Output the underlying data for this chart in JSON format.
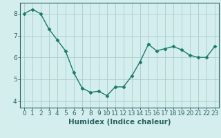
{
  "x": [
    0,
    1,
    2,
    3,
    4,
    5,
    6,
    7,
    8,
    9,
    10,
    11,
    12,
    13,
    14,
    15,
    16,
    17,
    18,
    19,
    20,
    21,
    22,
    23
  ],
  "y": [
    8.0,
    8.2,
    8.0,
    7.3,
    6.8,
    6.3,
    5.3,
    4.6,
    4.4,
    4.45,
    4.25,
    4.65,
    4.65,
    5.15,
    5.8,
    6.6,
    6.3,
    6.4,
    6.5,
    6.35,
    6.1,
    6.0,
    6.0,
    6.5
  ],
  "line_color": "#1a7a6a",
  "marker": "D",
  "marker_size": 2.5,
  "bg_color": "#d4eeee",
  "grid_color": "#aacccc",
  "xlabel": "Humidex (Indice chaleur)",
  "ylim": [
    3.7,
    8.5
  ],
  "xlim": [
    -0.5,
    23.5
  ],
  "yticks": [
    4,
    5,
    6,
    7,
    8
  ],
  "xticks": [
    0,
    1,
    2,
    3,
    4,
    5,
    6,
    7,
    8,
    9,
    10,
    11,
    12,
    13,
    14,
    15,
    16,
    17,
    18,
    19,
    20,
    21,
    22,
    23
  ],
  "tick_color": "#2a6060",
  "axis_color": "#2a6060",
  "xlabel_fontsize": 7.5,
  "tick_fontsize": 6.5,
  "linewidth": 1.0
}
